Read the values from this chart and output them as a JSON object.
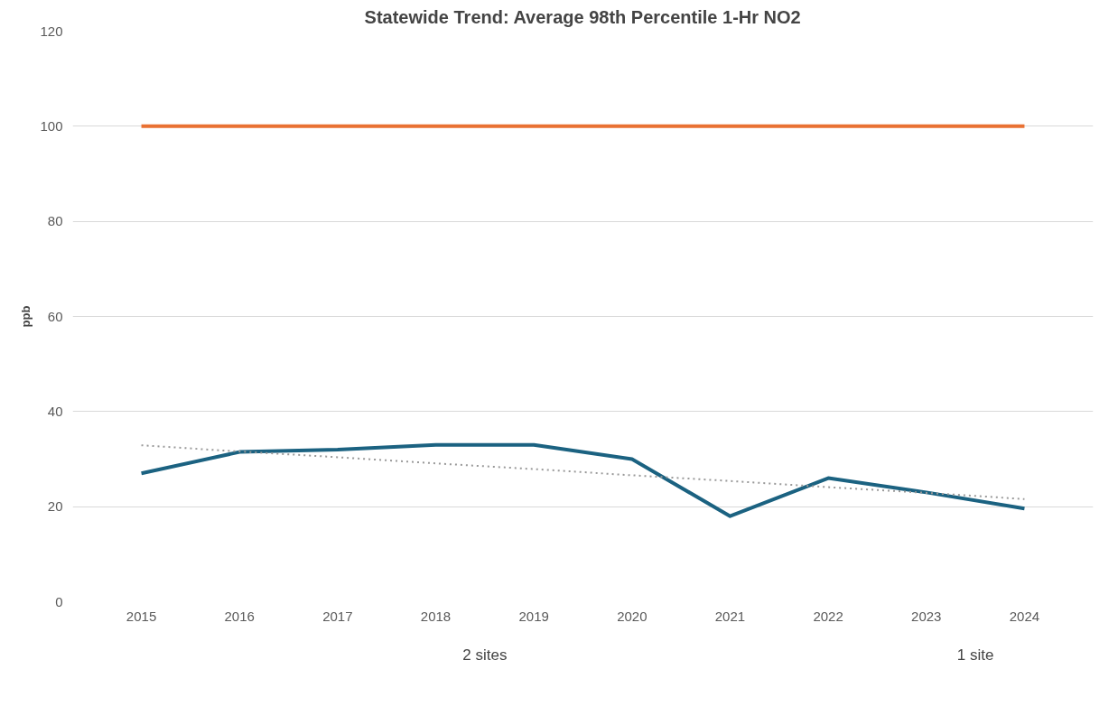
{
  "chart_data": {
    "type": "line",
    "title": "Statewide Trend: Average 98th Percentile 1-Hr NO2",
    "ylabel": "ppb",
    "categories": [
      "2015",
      "2016",
      "2017",
      "2018",
      "2019",
      "2020",
      "2021",
      "2022",
      "2023",
      "2024"
    ],
    "series": [
      {
        "color": "#e97132",
        "values": [
          100,
          100,
          100,
          100,
          100,
          100,
          100,
          100,
          100,
          100
        ]
      },
      {
        "color": "#1b6281",
        "values": [
          27,
          31.5,
          32,
          33,
          33,
          30,
          18,
          26,
          23,
          19.6
        ]
      },
      {
        "type": "line",
        "color": "#999999",
        "line_style": "dotted",
        "values": [
          32.9,
          31.6,
          30.4,
          29.1,
          27.9,
          26.6,
          25.4,
          24.1,
          22.9,
          21.6
        ]
      }
    ],
    "ylim": [
      0,
      120
    ],
    "yticks": [
      0,
      20,
      40,
      60,
      80,
      100,
      120
    ],
    "grid": "y",
    "annotations": [
      "2 sites",
      "1 site"
    ]
  }
}
